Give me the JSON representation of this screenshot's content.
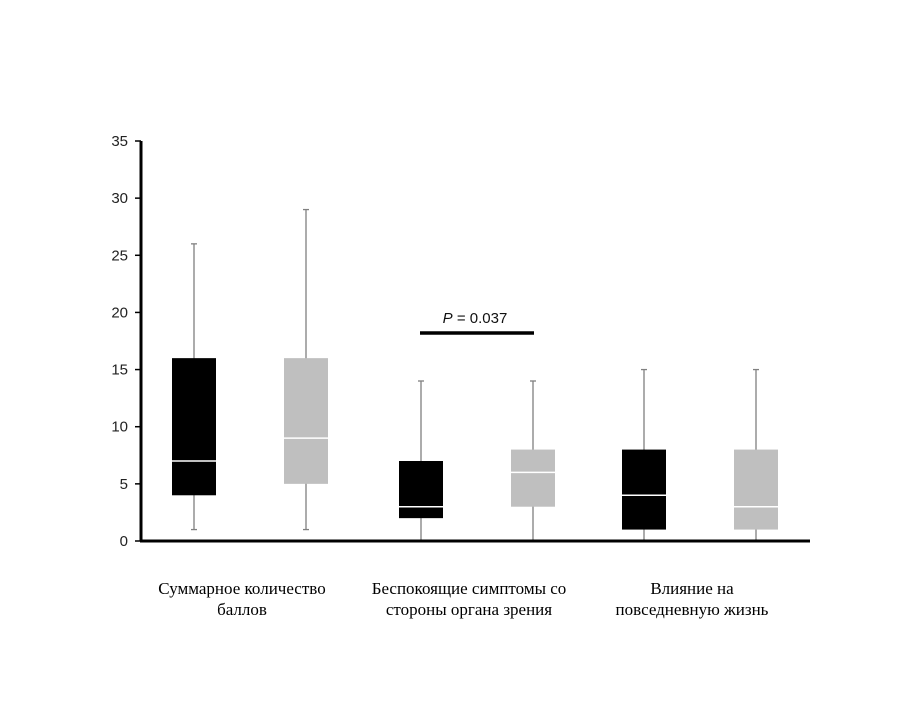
{
  "chart_data": {
    "type": "boxplot",
    "ylim": [
      0,
      35
    ],
    "y_ticks": [
      0,
      5,
      10,
      15,
      20,
      25,
      30,
      35
    ],
    "categories": [
      [
        "Суммарное количество",
        "баллов"
      ],
      [
        "Беспокоящие симптомы со",
        "стороны органа зрения"
      ],
      [
        "Влияние на",
        "повседневную жизнь"
      ]
    ],
    "series": [
      {
        "color": "#000000",
        "median_color": "#ffffff",
        "boxes": [
          {
            "min": 1,
            "q1": 4,
            "median": 7,
            "q3": 16,
            "max": 26
          },
          {
            "min": 0,
            "q1": 2,
            "median": 3,
            "q3": 7,
            "max": 14
          },
          {
            "min": 0,
            "q1": 1,
            "median": 4,
            "q3": 8,
            "max": 15
          }
        ]
      },
      {
        "color": "#bfbfbf",
        "median_color": "#ffffff",
        "boxes": [
          {
            "min": 1,
            "q1": 5,
            "median": 9,
            "q3": 16,
            "max": 29
          },
          {
            "min": 0,
            "q1": 3,
            "median": 6,
            "q3": 8,
            "max": 14
          },
          {
            "min": 0,
            "q1": 1,
            "median": 3,
            "q3": 8,
            "max": 15
          }
        ]
      }
    ],
    "annotation": {
      "text_italic": "P",
      "text_rest": " = 0.037",
      "category_index": 1
    }
  }
}
